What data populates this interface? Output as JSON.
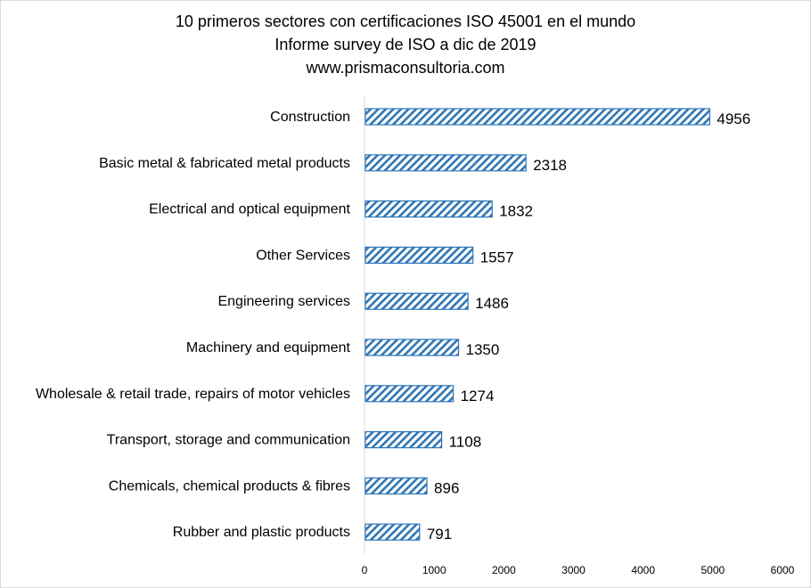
{
  "chart_data": {
    "type": "bar",
    "orientation": "horizontal",
    "title_lines": [
      "10 primeros sectores con certificaciones ISO 45001 en el mundo",
      "Informe survey de ISO a dic de 2019",
      "www.prismaconsultoria.com"
    ],
    "categories": [
      "Construction",
      "Basic metal & fabricated metal products",
      "Electrical and optical equipment",
      "Other Services",
      "Engineering services",
      "Machinery and equipment",
      "Wholesale & retail trade, repairs of motor vehicles",
      "Transport, storage and communication",
      "Chemicals, chemical products & fibres",
      "Rubber and plastic products"
    ],
    "values": [
      4956,
      2318,
      1832,
      1557,
      1486,
      1350,
      1274,
      1108,
      896,
      791
    ],
    "xlim": [
      0,
      6000
    ],
    "xticks": [
      0,
      1000,
      2000,
      3000,
      4000,
      5000,
      6000
    ],
    "grid": false,
    "legend": "none",
    "bar_color": "#2e75b6",
    "bar_pattern": "diagonal-hatch"
  }
}
